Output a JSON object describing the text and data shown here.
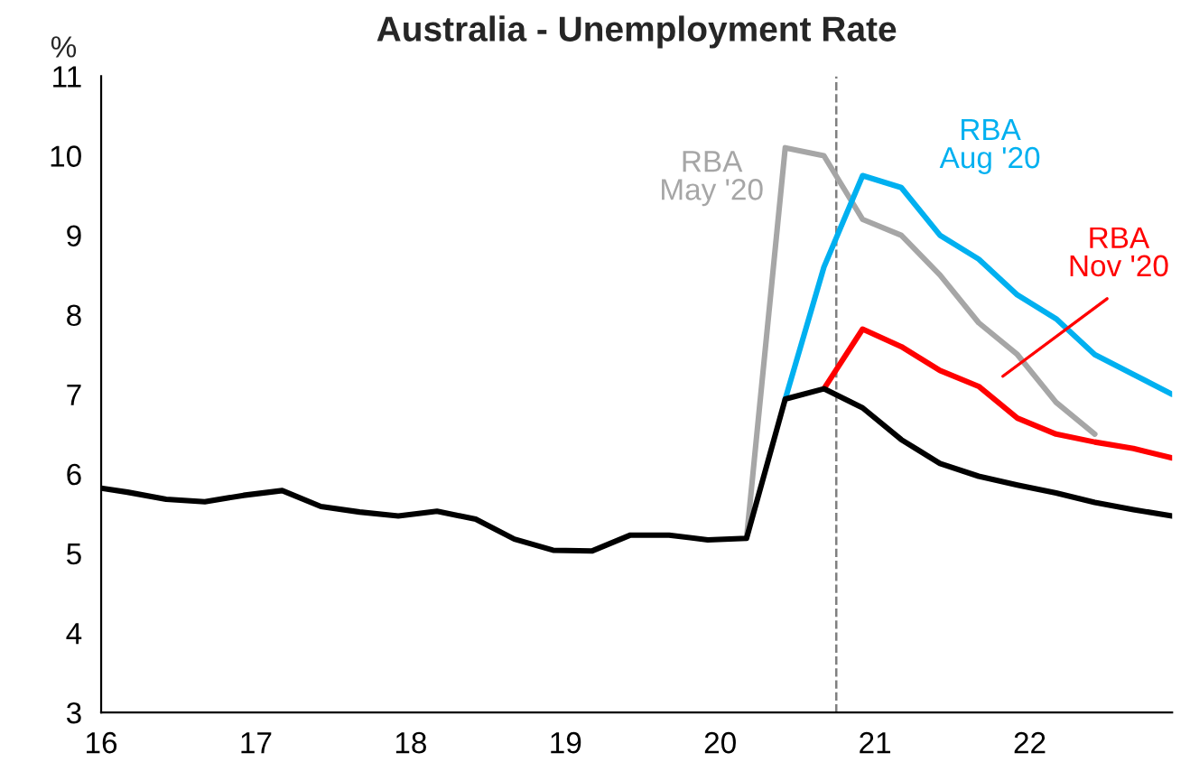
{
  "chart_data": {
    "type": "line",
    "title": "Australia - Unemployment Rate",
    "ylabel": "%",
    "xlim": [
      16,
      22.92
    ],
    "xticks": [
      16,
      17,
      18,
      19,
      20,
      21,
      22
    ],
    "ylim": [
      3,
      11
    ],
    "yticks": [
      3,
      4,
      5,
      6,
      7,
      8,
      9,
      10,
      11
    ],
    "grid": false,
    "legend": false,
    "line_style": "solid",
    "marker": "none",
    "ref_lines": [
      {
        "axis": "x",
        "value": 20.75,
        "color": "#808080",
        "line_style": "dashed"
      }
    ],
    "series": [
      {
        "name": "RBA May '20",
        "color": "#a6a6a6",
        "x": [
          20.17,
          20.42,
          20.67,
          20.92,
          21.17,
          21.42,
          21.67,
          21.92,
          22.17,
          22.42
        ],
        "values": [
          5.19,
          10.1,
          10.0,
          9.2,
          9.0,
          8.5,
          7.9,
          7.5,
          6.9,
          6.5
        ]
      },
      {
        "name": "RBA Aug '20",
        "color": "#00b0f0",
        "x": [
          20.42,
          20.67,
          20.92,
          21.17,
          21.42,
          21.67,
          21.92,
          22.17,
          22.42,
          22.67,
          22.92
        ],
        "values": [
          6.94,
          8.6,
          9.75,
          9.6,
          9.0,
          8.7,
          8.25,
          7.95,
          7.5,
          7.25,
          7.0
        ]
      },
      {
        "name": "RBA Nov '20",
        "color": "#ff0000",
        "x": [
          20.67,
          20.92,
          21.17,
          21.42,
          21.67,
          21.92,
          22.17,
          22.42,
          22.67,
          22.92
        ],
        "values": [
          7.07,
          7.82,
          7.6,
          7.3,
          7.1,
          6.7,
          6.5,
          6.4,
          6.32,
          6.2
        ]
      },
      {
        "color": "#000000",
        "x": [
          16.0,
          16.17,
          16.42,
          16.67,
          16.92,
          17.17,
          17.42,
          17.67,
          17.92,
          18.17,
          18.42,
          18.67,
          18.92,
          19.17,
          19.42,
          19.67,
          19.92,
          20.17,
          20.42,
          20.67,
          20.92,
          21.17,
          21.42,
          21.67,
          21.92,
          22.17,
          22.42,
          22.67,
          22.92
        ],
        "values": [
          5.82,
          5.77,
          5.68,
          5.65,
          5.73,
          5.79,
          5.59,
          5.52,
          5.47,
          5.53,
          5.43,
          5.18,
          5.04,
          5.03,
          5.23,
          5.23,
          5.17,
          5.19,
          6.94,
          7.07,
          6.83,
          6.43,
          6.13,
          5.97,
          5.86,
          5.76,
          5.64,
          5.55,
          5.47
        ]
      }
    ]
  }
}
